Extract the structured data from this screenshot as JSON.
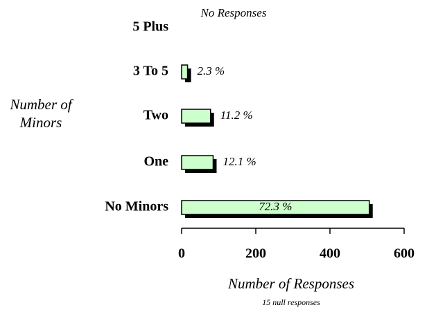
{
  "chart_data": {
    "type": "bar",
    "orientation": "horizontal",
    "categories": [
      "5 Plus",
      "3 To 5",
      "Two",
      "One",
      "No Minors"
    ],
    "values": [
      null,
      16,
      78,
      85,
      506
    ],
    "percent_labels": [
      "No Responses",
      "2.3 %",
      "11.2 %",
      "12.1 %",
      "72.3 %"
    ],
    "color": "#ccffcc",
    "xlim": [
      0,
      600
    ],
    "xticks": [
      0,
      200,
      400,
      600
    ],
    "xlabel": "Number of Responses",
    "ylabel": "Number of Minors",
    "note": "15 null responses"
  }
}
